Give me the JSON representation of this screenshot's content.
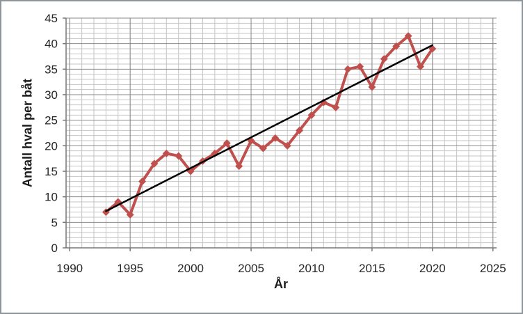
{
  "chart_data": {
    "type": "line",
    "title": "",
    "xlabel": "År",
    "ylabel": "Antall hval per båt",
    "xlim": [
      1989.7,
      2025.3
    ],
    "ylim": [
      0,
      45
    ],
    "x_ticks": [
      1990,
      1995,
      2000,
      2005,
      2010,
      2015,
      2020,
      2025
    ],
    "y_ticks": [
      0,
      5,
      10,
      15,
      20,
      25,
      30,
      35,
      40,
      45
    ],
    "minor_x_step": 1,
    "minor_y_step": 1,
    "grid": "major+minor",
    "legend": "none",
    "series": [
      {
        "name": "Antall hval per båt",
        "color": "#C0504D",
        "marker": "diamond",
        "x": [
          1993,
          1994,
          1995,
          1996,
          1997,
          1998,
          1999,
          2000,
          2001,
          2002,
          2003,
          2004,
          2005,
          2006,
          2007,
          2008,
          2009,
          2010,
          2011,
          2012,
          2013,
          2014,
          2015,
          2016,
          2017,
          2018,
          2019,
          2020
        ],
        "values": [
          7,
          9,
          6.5,
          13,
          16.5,
          18.5,
          18,
          15,
          17,
          18.5,
          20.5,
          16,
          21,
          19.5,
          21.5,
          20,
          23,
          26,
          28.5,
          27.5,
          35,
          35.5,
          31.5,
          37,
          39.5,
          41.5,
          35.5,
          39
        ]
      }
    ],
    "trendline": {
      "color": "#000000",
      "x1": 1993,
      "y1": 7.2,
      "x2": 2020,
      "y2": 39.7
    }
  },
  "colors": {
    "series": "#C0504D",
    "trendline": "#000000",
    "minor_grid": "#C4C4C4",
    "major_grid": "#898989",
    "axis_line": "#777777",
    "tick_text": "#262626",
    "frame_border": "#8f9499",
    "background": "#FFFFFF"
  }
}
